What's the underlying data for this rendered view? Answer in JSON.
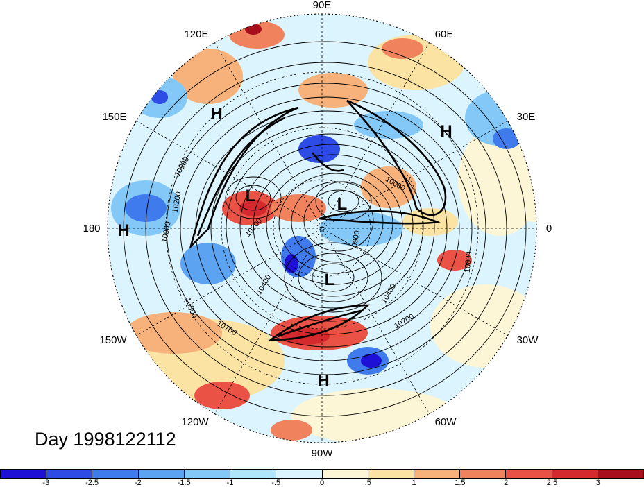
{
  "map": {
    "longitude_labels": [
      {
        "text": "90E",
        "key": "n"
      },
      {
        "text": "60E",
        "key": "ne1"
      },
      {
        "text": "30E",
        "key": "ne2"
      },
      {
        "text": "0",
        "key": "e"
      },
      {
        "text": "30W",
        "key": "se2"
      },
      {
        "text": "60W",
        "key": "se1"
      },
      {
        "text": "90W",
        "key": "s"
      },
      {
        "text": "120W",
        "key": "sw1"
      },
      {
        "text": "150W",
        "key": "sw2"
      },
      {
        "text": "180",
        "key": "w"
      },
      {
        "text": "150E",
        "key": "nw2"
      },
      {
        "text": "120E",
        "key": "nw1"
      }
    ],
    "pressure_centers": [
      "H",
      "H",
      "H",
      "L",
      "L",
      "L",
      "H"
    ],
    "contour_labels": [
      "10900",
      "10800",
      "10700",
      "10700",
      "10400",
      "10400",
      "10200",
      "9900",
      "10000",
      "10800",
      "10900",
      "10200"
    ]
  },
  "date_label": "Day 1998122112",
  "colorbar": {
    "colors": [
      "#1f10d6",
      "#2d4ce6",
      "#3f7bec",
      "#5ca3f2",
      "#84c8f7",
      "#b0e6fb",
      "#dcf4fd",
      "#fdf6d6",
      "#fbe3a4",
      "#f6b27a",
      "#f0835e",
      "#ea5246",
      "#d42a2e",
      "#a80f1c"
    ],
    "ticks": [
      "-3",
      "-2.5",
      "-2",
      "-1.5",
      "-1",
      "-.5",
      "0",
      ".5",
      "1",
      "1.5",
      "2",
      "2.5",
      "3"
    ]
  }
}
